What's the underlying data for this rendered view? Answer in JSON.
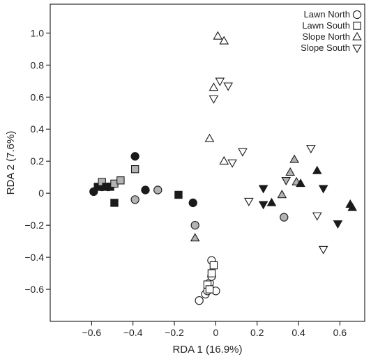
{
  "chart_data": {
    "type": "scatter",
    "title": "",
    "xlabel": "RDA 1 (16.9%)",
    "ylabel": "RDA 2 (7.6%)",
    "xlim": [
      -0.8,
      0.72
    ],
    "ylim": [
      -0.8,
      1.18
    ],
    "xticks": [
      -0.6,
      -0.4,
      -0.2,
      0,
      0.2,
      0.4,
      0.6
    ],
    "yticks": [
      -0.6,
      -0.4,
      -0.2,
      0,
      0.2,
      0.4,
      0.6,
      0.8,
      1.0
    ],
    "xtick_labels": [
      "−0.6",
      "−0.4",
      "−0.2",
      "0",
      "0.2",
      "0.4",
      "0.6"
    ],
    "ytick_labels": [
      "−0.6",
      "−0.4",
      "−0.2",
      "0",
      "0.2",
      "0.4",
      "0.6",
      "0.8",
      "1.0"
    ],
    "grid": false,
    "legend_position": "top-right",
    "fill_colors": {
      "open": "#ffffff",
      "gray": "#b3b3b3",
      "black": "#1a1a1a"
    },
    "series": [
      {
        "name": "Lawn North",
        "marker": "circle",
        "points": [
          {
            "x": -0.59,
            "y": 0.01,
            "fill": "black"
          },
          {
            "x": -0.55,
            "y": 0.04,
            "fill": "black"
          },
          {
            "x": -0.52,
            "y": 0.04,
            "fill": "gray"
          },
          {
            "x": -0.39,
            "y": 0.23,
            "fill": "black"
          },
          {
            "x": -0.39,
            "y": -0.04,
            "fill": "gray"
          },
          {
            "x": -0.34,
            "y": 0.02,
            "fill": "black"
          },
          {
            "x": -0.28,
            "y": 0.02,
            "fill": "gray"
          },
          {
            "x": -0.11,
            "y": -0.06,
            "fill": "black"
          },
          {
            "x": -0.1,
            "y": -0.2,
            "fill": "gray"
          },
          {
            "x": 0.33,
            "y": -0.15,
            "fill": "gray"
          },
          {
            "x": -0.08,
            "y": -0.67,
            "fill": "open"
          },
          {
            "x": -0.05,
            "y": -0.63,
            "fill": "open"
          },
          {
            "x": -0.04,
            "y": -0.61,
            "fill": "open"
          },
          {
            "x": -0.03,
            "y": -0.56,
            "fill": "open"
          },
          {
            "x": -0.02,
            "y": -0.52,
            "fill": "open"
          },
          {
            "x": -0.02,
            "y": -0.42,
            "fill": "open"
          },
          {
            "x": 0.0,
            "y": -0.61,
            "fill": "open"
          }
        ]
      },
      {
        "name": "Lawn South",
        "marker": "square",
        "points": [
          {
            "x": -0.57,
            "y": 0.04,
            "fill": "black"
          },
          {
            "x": -0.55,
            "y": 0.07,
            "fill": "gray"
          },
          {
            "x": -0.53,
            "y": 0.04,
            "fill": "black"
          },
          {
            "x": -0.51,
            "y": 0.04,
            "fill": "black"
          },
          {
            "x": -0.49,
            "y": 0.06,
            "fill": "gray"
          },
          {
            "x": -0.49,
            "y": -0.06,
            "fill": "black"
          },
          {
            "x": -0.46,
            "y": 0.08,
            "fill": "gray"
          },
          {
            "x": -0.39,
            "y": 0.15,
            "fill": "gray"
          },
          {
            "x": -0.18,
            "y": -0.01,
            "fill": "black"
          },
          {
            "x": -0.04,
            "y": -0.57,
            "fill": "open"
          },
          {
            "x": -0.03,
            "y": -0.6,
            "fill": "open"
          },
          {
            "x": -0.02,
            "y": -0.5,
            "fill": "open"
          },
          {
            "x": -0.01,
            "y": -0.45,
            "fill": "open"
          }
        ]
      },
      {
        "name": "Slope North",
        "marker": "triangle-up",
        "points": [
          {
            "x": 0.01,
            "y": 0.98,
            "fill": "open"
          },
          {
            "x": 0.04,
            "y": 0.95,
            "fill": "open"
          },
          {
            "x": -0.01,
            "y": 0.66,
            "fill": "open"
          },
          {
            "x": -0.03,
            "y": 0.34,
            "fill": "open"
          },
          {
            "x": 0.04,
            "y": 0.2,
            "fill": "open"
          },
          {
            "x": -0.1,
            "y": -0.28,
            "fill": "gray"
          },
          {
            "x": 0.32,
            "y": -0.01,
            "fill": "gray"
          },
          {
            "x": 0.36,
            "y": 0.13,
            "fill": "gray"
          },
          {
            "x": 0.38,
            "y": 0.21,
            "fill": "gray"
          },
          {
            "x": 0.39,
            "y": 0.07,
            "fill": "gray"
          },
          {
            "x": 0.27,
            "y": -0.06,
            "fill": "black"
          },
          {
            "x": 0.41,
            "y": 0.06,
            "fill": "black"
          },
          {
            "x": 0.49,
            "y": 0.14,
            "fill": "black"
          },
          {
            "x": 0.65,
            "y": -0.07,
            "fill": "black"
          },
          {
            "x": 0.66,
            "y": -0.09,
            "fill": "black"
          }
        ]
      },
      {
        "name": "Slope South",
        "marker": "triangle-down",
        "points": [
          {
            "x": 0.02,
            "y": 0.7,
            "fill": "open"
          },
          {
            "x": 0.06,
            "y": 0.67,
            "fill": "open"
          },
          {
            "x": -0.01,
            "y": 0.59,
            "fill": "open"
          },
          {
            "x": 0.13,
            "y": 0.26,
            "fill": "open"
          },
          {
            "x": 0.08,
            "y": 0.19,
            "fill": "open"
          },
          {
            "x": 0.16,
            "y": -0.05,
            "fill": "open"
          },
          {
            "x": 0.46,
            "y": 0.28,
            "fill": "open"
          },
          {
            "x": 0.34,
            "y": 0.08,
            "fill": "gray"
          },
          {
            "x": 0.49,
            "y": -0.14,
            "fill": "open"
          },
          {
            "x": 0.52,
            "y": -0.35,
            "fill": "open"
          },
          {
            "x": 0.23,
            "y": 0.03,
            "fill": "black"
          },
          {
            "x": 0.23,
            "y": -0.07,
            "fill": "black"
          },
          {
            "x": 0.52,
            "y": 0.03,
            "fill": "black"
          },
          {
            "x": 0.59,
            "y": -0.19,
            "fill": "black"
          }
        ]
      }
    ]
  }
}
